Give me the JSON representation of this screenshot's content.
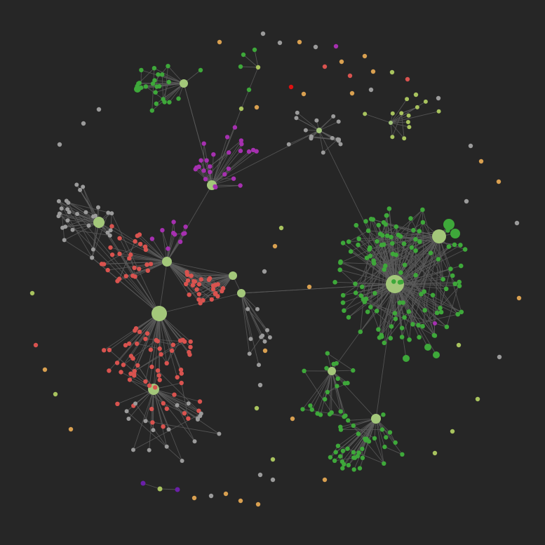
{
  "graph": {
    "background": "#262626",
    "edge_color": "#5a5a5a",
    "groups": [
      {
        "name": "hub",
        "color": "#a3c77a"
      },
      {
        "name": "green",
        "color": "#3ea83a"
      },
      {
        "name": "red",
        "color": "#d9534f"
      },
      {
        "name": "purple",
        "color": "#a630b0"
      },
      {
        "name": "gray",
        "color": "#9b9b9b"
      },
      {
        "name": "orange",
        "color": "#d9a050"
      },
      {
        "name": "bright-red",
        "color": "#e01010"
      },
      {
        "name": "dark-purple",
        "color": "#6a1fa8"
      },
      {
        "name": "lime",
        "color": "#a8c35e"
      }
    ]
  }
}
